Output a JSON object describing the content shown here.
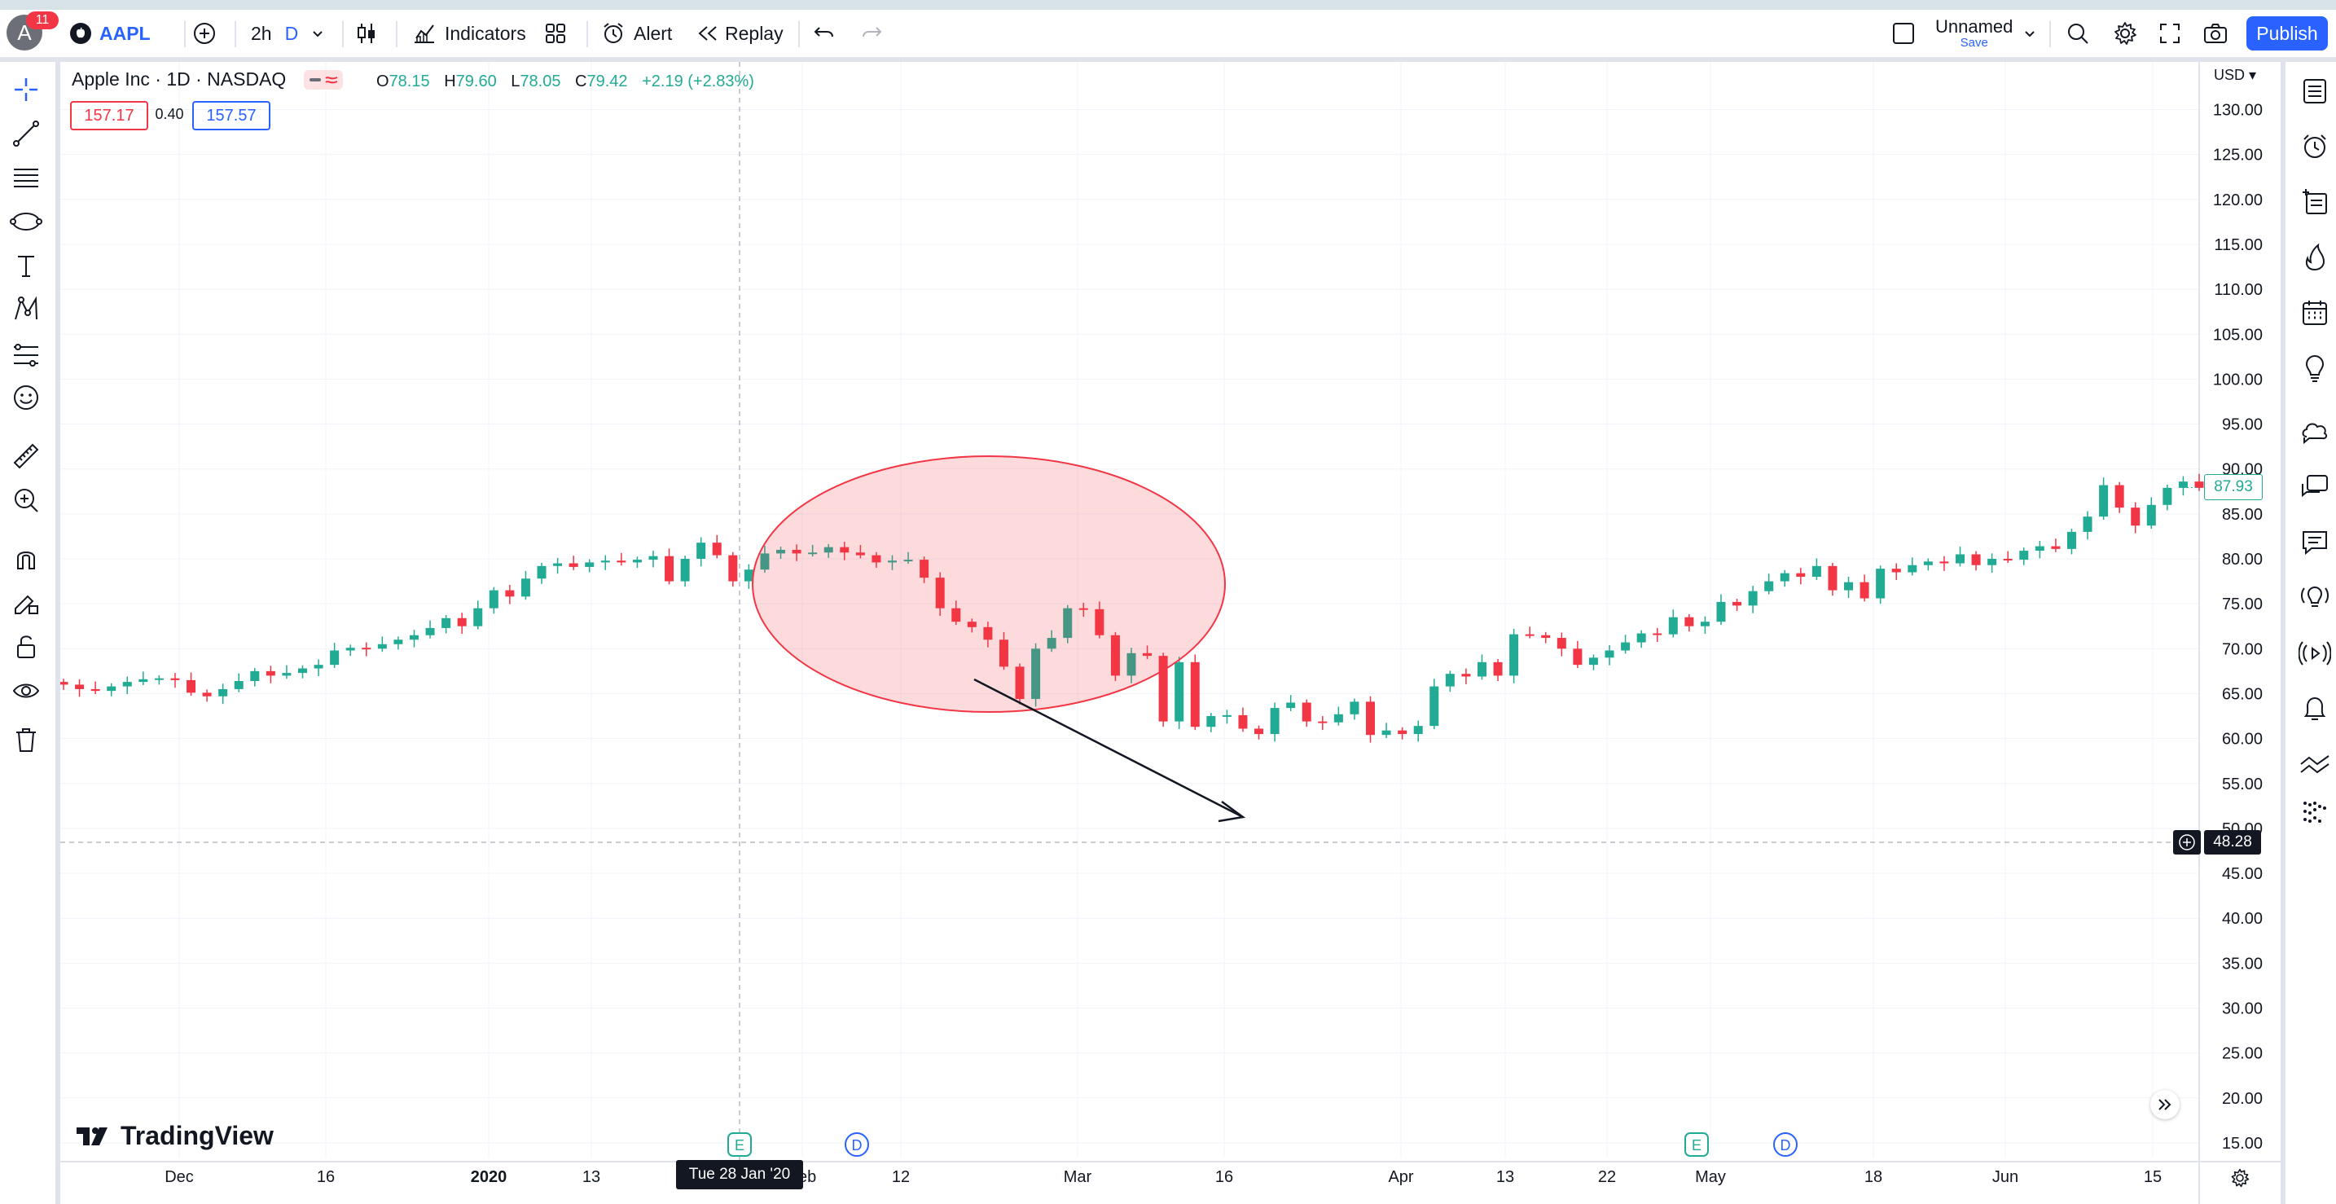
{
  "topbar": {
    "avatar_letter": "A",
    "notif_count": "11",
    "symbol": "AAPL",
    "interval": "2h",
    "interval_flag": "D",
    "indicators": "Indicators",
    "alert": "Alert",
    "replay": "Replay",
    "layout_name": "Unnamed",
    "layout_save": "Save",
    "publish": "Publish"
  },
  "legend": {
    "title": "Apple Inc · 1D · NASDAQ",
    "o_key": "O",
    "o": "78.15",
    "h_key": "H",
    "h": "79.60",
    "l_key": "L",
    "l": "78.05",
    "c_key": "C",
    "c": "79.42",
    "change": "+2.19 (+2.83%)",
    "bid": "157.17",
    "spread": "0.40",
    "ask": "157.57"
  },
  "axis": {
    "currency": "USD",
    "last_price": "87.93",
    "cursor_price": "48.28",
    "cursor_date": "Tue 28 Jan '20",
    "event_e": "E",
    "event_d": "D"
  },
  "brand": "TradingView",
  "colors": {
    "up": "#22ab94",
    "down": "#f23645",
    "accent": "#2962ff"
  },
  "chart_data": {
    "type": "candlestick",
    "title": "Apple Inc · 1D · NASDAQ",
    "ylim": [
      12.5,
      132.5
    ],
    "y_ticks": [
      130,
      125,
      120,
      115,
      110,
      105,
      100,
      95,
      90,
      85,
      80,
      75,
      70,
      65,
      60,
      55,
      50,
      45,
      40,
      35,
      30,
      25,
      20,
      15
    ],
    "x_ticks": [
      "Dec",
      "16",
      "2020",
      "13",
      "Feb",
      "12",
      "Mar",
      "16",
      "Apr",
      "13",
      "22",
      "May",
      "18",
      "Jun",
      "15"
    ],
    "closes": [
      66.0,
      65.5,
      65.3,
      65.8,
      66.3,
      66.6,
      66.7,
      66.5,
      65.1,
      64.7,
      65.5,
      66.4,
      67.5,
      67.0,
      67.3,
      67.8,
      68.2,
      69.8,
      70.1,
      70.0,
      70.5,
      71.0,
      71.5,
      72.3,
      73.4,
      72.5,
      74.5,
      76.5,
      75.8,
      77.8,
      79.2,
      79.5,
      79.1,
      79.6,
      79.8,
      79.6,
      79.9,
      80.3,
      77.5,
      80.0,
      81.8,
      80.4,
      77.5,
      78.8,
      80.6,
      81.0,
      80.6,
      80.7,
      81.3,
      80.7,
      80.4,
      79.6,
      79.8,
      79.9,
      77.9,
      74.5,
      73.0,
      72.4,
      71.0,
      68.0,
      64.4,
      70.0,
      71.2,
      74.5,
      74.4,
      71.5,
      67.0,
      69.5,
      69.2,
      61.9,
      68.5,
      61.3,
      62.5,
      62.6,
      61.1,
      60.5,
      63.4,
      64.0,
      61.9,
      61.8,
      62.7,
      64.1,
      60.4,
      60.9,
      60.5,
      61.4,
      65.8,
      67.2,
      66.9,
      68.5,
      67.0,
      71.6,
      71.5,
      71.2,
      70.0,
      68.2,
      69.0,
      69.8,
      70.7,
      71.7,
      71.6,
      73.5,
      72.5,
      73.0,
      75.2,
      74.8,
      76.4,
      77.5,
      78.4,
      78.0,
      79.2,
      76.5,
      77.4,
      75.6,
      78.9,
      78.5,
      79.3,
      79.7,
      79.5,
      80.5,
      79.3,
      80.0,
      79.9,
      80.9,
      81.4,
      81.1,
      83.0,
      84.7,
      88.2,
      85.7,
      83.7,
      86.0,
      87.9,
      88.6,
      87.9
    ]
  }
}
